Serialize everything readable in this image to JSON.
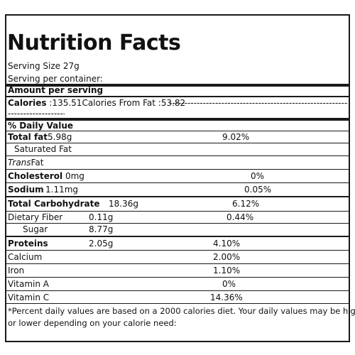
{
  "label": {
    "title": "Nutrition Facts",
    "serving_size": "Serving Size 27g",
    "serving_per_container": "Serving per container:",
    "amount_per_serving": "Amount per serving",
    "calories_label": "Calories",
    "calories_value": " :135.51",
    "calories_from_fat": "Calories From Fat :53.82",
    "dashes_right": "---------------------------------------------------------------------------------------------------------",
    "dashes_left": "--------------------",
    "daily_value_header": "% Daily Value",
    "rows": {
      "total_fat": {
        "name": "Total fat",
        "amount": "5.98g",
        "dv": "9.02%"
      },
      "saturated_fat": {
        "name": "Saturated Fat"
      },
      "trans_fat": {
        "name_italic": "Trans",
        "name_rest": "Fat"
      },
      "cholesterol": {
        "name": "Cholesterol",
        "amount": " 0mg",
        "dv": "0%"
      },
      "sodium": {
        "name": "Sodium",
        "amount": "1.11mg",
        "dv": "0.05%"
      },
      "total_carbohydrate": {
        "name": "Total Carbohydrate",
        "amount": "18.36g",
        "dv": "6.12%"
      },
      "dietary_fiber": {
        "name": "Dietary Fiber",
        "amount": "0.11g",
        "dv": "0.44%"
      },
      "sugar": {
        "name": "Sugar",
        "amount": "8.77g"
      },
      "proteins": {
        "name": "Proteins",
        "amount": "2.05g",
        "dv": "4.10%"
      },
      "calcium": {
        "name": "Calcium",
        "dv": "2.00%"
      },
      "iron": {
        "name": "Iron",
        "dv": "1.10%"
      },
      "vitamin_a": {
        "name": "Vitamin A",
        "dv": "0%"
      },
      "vitamin_c": {
        "name": "Vitamin C",
        "dv": "14.36%"
      }
    },
    "footnote_line1": "*Percent daily values are based on a 2000 calories diet. Your daily values may be higher",
    "footnote_line2": "or lower  depending on your calorie need:"
  }
}
